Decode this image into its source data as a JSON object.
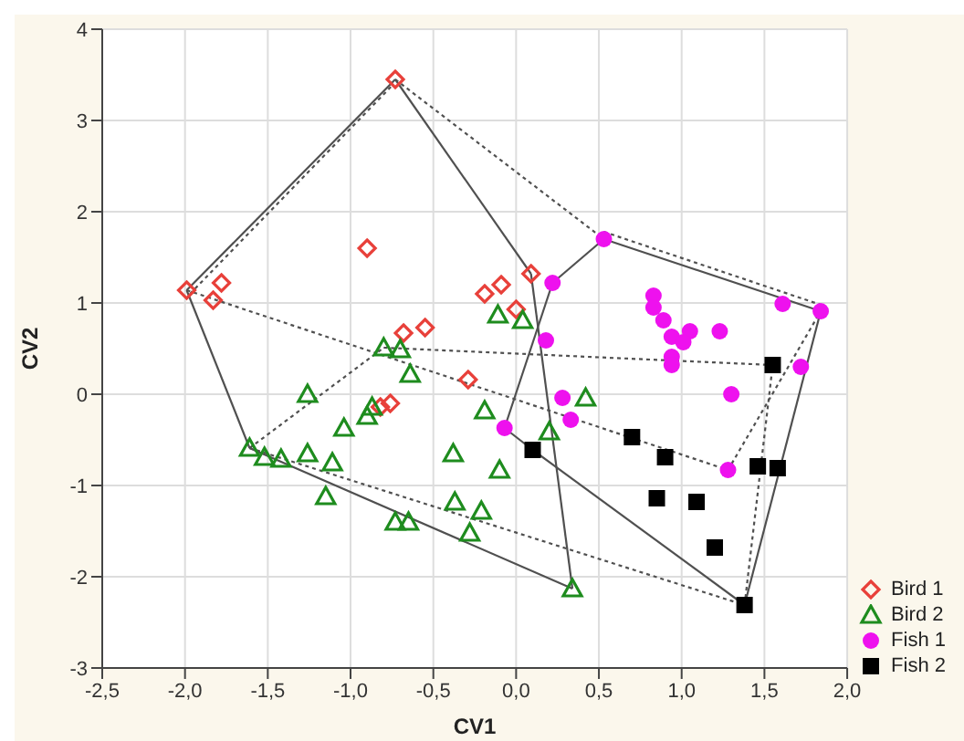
{
  "chart_data": {
    "type": "scatter",
    "xlabel": "CV1",
    "ylabel": "CV2",
    "xlim": [
      -2.5,
      2.0
    ],
    "xticks": [
      {
        "value": -2.5,
        "label": "-2,5"
      },
      {
        "value": -2.0,
        "label": "-2,0"
      },
      {
        "value": -1.5,
        "label": "-1,5"
      },
      {
        "value": -1.0,
        "label": "-1,0"
      },
      {
        "value": -0.5,
        "label": "-0,5"
      },
      {
        "value": 0,
        "label": "0,0"
      },
      {
        "value": 0.5,
        "label": "0,5"
      },
      {
        "value": 1.0,
        "label": "1,0"
      },
      {
        "value": 1.5,
        "label": "1,5"
      },
      {
        "value": 2.0,
        "label": "2,0"
      }
    ],
    "ylim": [
      -3,
      4
    ],
    "yticks": [
      -3,
      -2,
      -1,
      0,
      1,
      2,
      3,
      4
    ],
    "grid": true,
    "legend": "bottom right",
    "series": [
      {
        "type": "line",
        "color": "#505050",
        "line_style": "solid",
        "marker": "none",
        "x": [
          -1.99,
          -0.73
        ],
        "values": [
          1.14,
          3.45
        ]
      },
      {
        "type": "line",
        "color": "#505050",
        "line_style": "solid",
        "marker": "none",
        "x": [
          -0.73,
          0.09
        ],
        "values": [
          3.45,
          1.32
        ]
      },
      {
        "type": "line",
        "color": "#505050",
        "line_style": "solid",
        "marker": "none",
        "x": [
          0.09,
          0.34
        ],
        "values": [
          1.32,
          -2.13
        ]
      },
      {
        "type": "line",
        "color": "#505050",
        "line_style": "solid",
        "marker": "none",
        "x": [
          -1.61,
          0.34
        ],
        "values": [
          -0.59,
          -2.13
        ]
      },
      {
        "type": "line",
        "color": "#505050",
        "line_style": "solid",
        "marker": "none",
        "x": [
          -1.99,
          -1.61
        ],
        "values": [
          1.14,
          -0.59
        ]
      },
      {
        "type": "line",
        "color": "#505050",
        "line_style": "solid",
        "marker": "none",
        "x": [
          -0.07,
          0.22
        ],
        "values": [
          -0.37,
          1.22
        ]
      },
      {
        "type": "line",
        "color": "#505050",
        "line_style": "solid",
        "marker": "none",
        "x": [
          0.22,
          0.53
        ],
        "values": [
          1.22,
          1.7
        ]
      },
      {
        "type": "line",
        "color": "#505050",
        "line_style": "solid",
        "marker": "none",
        "x": [
          0.53,
          1.84
        ],
        "values": [
          1.7,
          0.91
        ]
      },
      {
        "type": "line",
        "color": "#505050",
        "line_style": "solid",
        "marker": "none",
        "x": [
          1.38,
          1.84
        ],
        "values": [
          -2.31,
          0.91
        ]
      },
      {
        "type": "line",
        "color": "#505050",
        "line_style": "solid",
        "marker": "none",
        "x": [
          0.1,
          1.38
        ],
        "values": [
          -0.61,
          -2.31
        ]
      },
      {
        "type": "line",
        "color": "#505050",
        "line_style": "solid",
        "marker": "none",
        "x": [
          -0.07,
          0.1
        ],
        "values": [
          -0.37,
          -0.61
        ]
      },
      {
        "type": "line",
        "color": "#505050",
        "line_style": "dotted",
        "marker": "none",
        "x": [
          -1.97,
          -0.75
        ],
        "values": [
          1.1,
          3.38
        ]
      },
      {
        "type": "line",
        "color": "#505050",
        "line_style": "dotted",
        "marker": "none",
        "x": [
          -0.73,
          0.53
        ],
        "values": [
          3.45,
          1.7
        ]
      },
      {
        "type": "line",
        "color": "#505050",
        "line_style": "dotted",
        "marker": "none",
        "x": [
          0.53,
          1.84
        ],
        "values": [
          1.78,
          0.98
        ]
      },
      {
        "type": "line",
        "color": "#505050",
        "line_style": "dotted",
        "marker": "none",
        "x": [
          1.28,
          1.84
        ],
        "values": [
          -0.83,
          0.91
        ]
      },
      {
        "type": "line",
        "color": "#505050",
        "line_style": "dotted",
        "marker": "none",
        "x": [
          -1.99,
          1.28
        ],
        "values": [
          1.14,
          -0.83
        ]
      },
      {
        "type": "line",
        "color": "#505050",
        "line_style": "dotted",
        "marker": "none",
        "x": [
          -1.61,
          -0.8
        ],
        "values": [
          -0.59,
          0.51
        ]
      },
      {
        "type": "line",
        "color": "#505050",
        "line_style": "dotted",
        "marker": "none",
        "x": [
          -0.8,
          1.55
        ],
        "values": [
          0.51,
          0.32
        ]
      },
      {
        "type": "line",
        "color": "#505050",
        "line_style": "dotted",
        "marker": "none",
        "x": [
          1.38,
          1.55
        ],
        "values": [
          -2.31,
          0.32
        ]
      },
      {
        "type": "line",
        "color": "#505050",
        "line_style": "dotted",
        "marker": "none",
        "x": [
          -1.61,
          1.38
        ],
        "values": [
          -0.59,
          -2.31
        ]
      },
      {
        "name": "Bird 1",
        "color": "#e8403a",
        "marker": "diamond",
        "x": [
          -1.99,
          -1.78,
          -1.83,
          -0.73,
          -0.9,
          -0.68,
          -0.55,
          -0.29,
          -0.82,
          -0.76,
          -0.19,
          -0.09,
          0.0,
          0.09
        ],
        "values": [
          1.14,
          1.22,
          1.03,
          3.45,
          1.6,
          0.67,
          0.73,
          0.16,
          -0.14,
          -0.1,
          1.1,
          1.2,
          0.93,
          1.32
        ]
      },
      {
        "name": "Bird 2",
        "color": "#1e8c1e",
        "marker": "triangle",
        "x": [
          -1.61,
          -1.52,
          -1.42,
          -1.26,
          -1.26,
          -1.11,
          -1.15,
          -1.04,
          -0.87,
          -0.9,
          -0.8,
          -0.7,
          -0.64,
          -0.73,
          -0.65,
          -0.38,
          -0.37,
          -0.28,
          -0.21,
          -0.19,
          -0.1,
          -0.11,
          0.04,
          0.2,
          0.42,
          0.34
        ],
        "values": [
          -0.59,
          -0.69,
          -0.71,
          0.0,
          -0.65,
          -0.75,
          -1.12,
          -0.37,
          -0.14,
          -0.24,
          0.51,
          0.49,
          0.22,
          -1.4,
          -1.4,
          -0.65,
          -1.18,
          -1.52,
          -1.28,
          -0.18,
          -0.83,
          0.87,
          0.81,
          -0.41,
          -0.04,
          -2.13
        ]
      },
      {
        "name": "Fish 1",
        "color": "#ee11ee",
        "marker": "circle",
        "x": [
          0.53,
          0.22,
          0.18,
          0.83,
          0.83,
          0.89,
          0.94,
          1.05,
          1.01,
          0.94,
          0.94,
          1.23,
          1.61,
          1.84,
          1.72,
          1.3,
          1.28,
          0.28,
          0.33,
          -0.07
        ],
        "values": [
          1.7,
          1.22,
          0.59,
          1.08,
          0.95,
          0.81,
          0.63,
          0.69,
          0.57,
          0.41,
          0.32,
          0.69,
          0.99,
          0.91,
          0.3,
          0.0,
          -0.83,
          -0.04,
          -0.28,
          -0.37
        ]
      },
      {
        "name": "Fish 2",
        "color": "#000000",
        "marker": "square",
        "x": [
          1.55,
          0.7,
          0.9,
          0.1,
          0.85,
          1.09,
          1.2,
          1.46,
          1.58,
          1.38
        ],
        "values": [
          0.32,
          -0.47,
          -0.69,
          -0.61,
          -1.14,
          -1.18,
          -1.68,
          -0.79,
          -0.81,
          -2.31
        ]
      }
    ]
  }
}
